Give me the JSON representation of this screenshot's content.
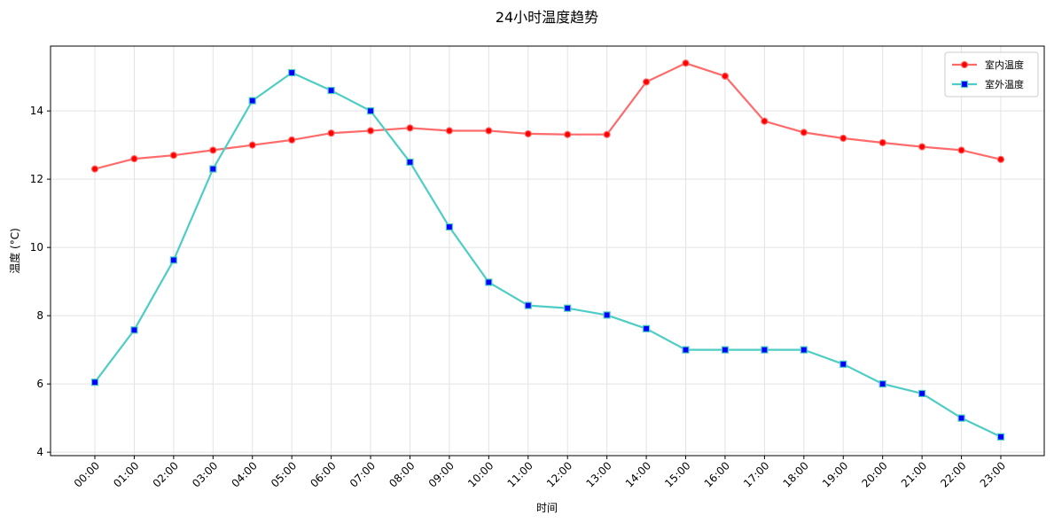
{
  "chart_data": {
    "type": "line",
    "title": "24小时温度趋势",
    "xlabel": "时间",
    "ylabel": "温度 (°C)",
    "categories": [
      "00:00",
      "01:00",
      "02:00",
      "03:00",
      "04:00",
      "05:00",
      "06:00",
      "07:00",
      "08:00",
      "09:00",
      "10:00",
      "11:00",
      "12:00",
      "13:00",
      "14:00",
      "15:00",
      "16:00",
      "17:00",
      "18:00",
      "19:00",
      "20:00",
      "21:00",
      "22:00",
      "23:00"
    ],
    "ylim": [
      3.9,
      15.9
    ],
    "yticks": [
      4,
      6,
      8,
      10,
      12,
      14
    ],
    "grid": true,
    "legend_position": "top-right",
    "series": [
      {
        "name": "室内温度",
        "color": "#ff6b6b",
        "marker_color": "#ff0000",
        "marker": "circle",
        "values": [
          12.3,
          12.6,
          12.7,
          12.85,
          13.0,
          13.15,
          13.35,
          13.42,
          13.5,
          13.42,
          13.42,
          13.33,
          13.31,
          13.31,
          14.85,
          15.4,
          15.02,
          13.7,
          13.37,
          13.2,
          13.07,
          12.95,
          12.85,
          12.58
        ]
      },
      {
        "name": "室外温度",
        "color": "#4ecdc4",
        "marker_color": "#0000ff",
        "marker": "square",
        "values": [
          6.05,
          7.58,
          9.63,
          12.3,
          14.3,
          15.12,
          14.6,
          14.0,
          12.5,
          10.6,
          8.98,
          8.3,
          8.22,
          8.02,
          7.62,
          7.0,
          7.0,
          7.0,
          7.0,
          6.58,
          6.0,
          5.72,
          5.0,
          4.45
        ]
      }
    ]
  }
}
